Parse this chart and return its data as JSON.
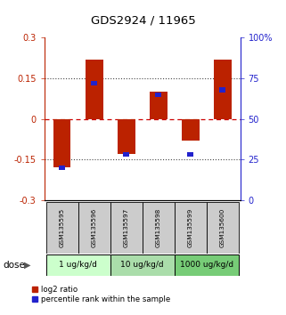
{
  "title": "GDS2924 / 11965",
  "samples": [
    "GSM135595",
    "GSM135596",
    "GSM135597",
    "GSM135598",
    "GSM135599",
    "GSM135600"
  ],
  "log2_ratio": [
    -0.18,
    0.22,
    -0.13,
    0.1,
    -0.08,
    0.22
  ],
  "percentile_rank": [
    20,
    72,
    28,
    65,
    28,
    68
  ],
  "groups": [
    {
      "label": "1 ug/kg/d",
      "color": "#ccffcc",
      "start": 0,
      "end": 1
    },
    {
      "label": "10 ug/kg/d",
      "color": "#aaddaa",
      "start": 2,
      "end": 3
    },
    {
      "label": "1000 ug/kg/d",
      "color": "#77cc77",
      "start": 4,
      "end": 5
    }
  ],
  "ylim": [
    -0.3,
    0.3
  ],
  "yticks": [
    -0.3,
    -0.15,
    0,
    0.15,
    0.3
  ],
  "ytick_labels": [
    "-0.3",
    "-0.15",
    "0",
    "0.15",
    "0.3"
  ],
  "y2ticks": [
    0,
    25,
    50,
    75,
    100
  ],
  "y2tick_labels": [
    "0",
    "25",
    "50",
    "75",
    "100%"
  ],
  "bar_color_red": "#bb2200",
  "bar_color_blue": "#2222cc",
  "hline_color": "#cc0000",
  "dotted_color": "#444444",
  "bg_bar_color": "#cccccc",
  "dose_label": "dose",
  "legend_red": "log2 ratio",
  "legend_blue": "percentile rank within the sample"
}
